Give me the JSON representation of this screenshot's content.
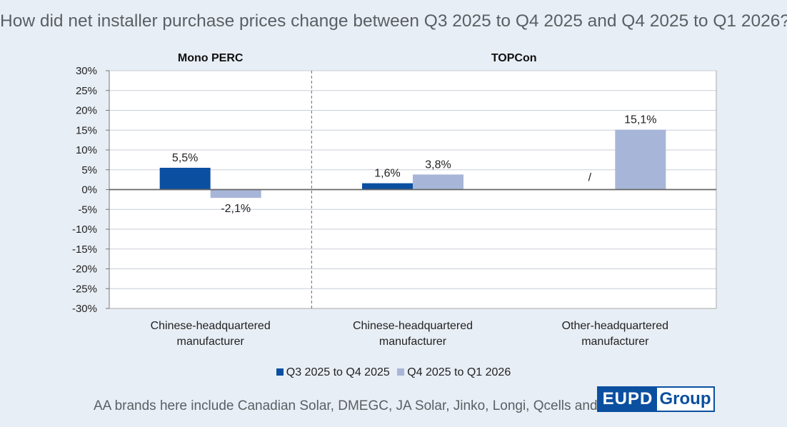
{
  "chart_data": {
    "type": "bar",
    "title": "How did net installer purchase prices change between Q3 2025 to Q4 2025 and Q4 2025 to Q1 2026?",
    "ylim": [
      -30,
      30
    ],
    "ytick_step": 5,
    "yticks": [
      "30%",
      "25%",
      "20%",
      "15%",
      "10%",
      "5%",
      "0%",
      "-5%",
      "-10%",
      "-15%",
      "-20%",
      "-25%",
      "-30%"
    ],
    "panels": [
      {
        "name": "Mono PERC",
        "categories": [
          "Chinese-headquartered manufacturer"
        ]
      },
      {
        "name": "TOPCon",
        "categories": [
          "Chinese-headquartered manufacturer",
          "Other-headquartered manufacturer"
        ]
      }
    ],
    "categories": [
      [
        "Chinese-headquartered",
        "manufacturer"
      ],
      [
        "Chinese-headquartered",
        "manufacturer"
      ],
      [
        "Other-headquartered",
        "manufacturer"
      ]
    ],
    "series": [
      {
        "name": "Q3 2025 to Q4 2025",
        "color": "#0b4fa0",
        "values": [
          5.5,
          1.6,
          null
        ],
        "labels": [
          "5,5%",
          "1,6%",
          "/"
        ]
      },
      {
        "name": "Q4 2025 to Q1 2026",
        "color": "#a7b6d8",
        "values": [
          -2.1,
          3.8,
          15.1
        ],
        "labels": [
          "-2,1%",
          "3,8%",
          "15,1%"
        ]
      }
    ],
    "grid": true,
    "legend_position": "bottom"
  },
  "footnote": "AA brands here include Canadian Solar, DMEGC, JA Solar, Jinko, Longi, Qcells and Trina.",
  "logo": {
    "left": "EUPD",
    "right": "Group"
  },
  "colors": {
    "background": "#e8eef5",
    "plot_background": "#ffffff",
    "grid": "#c8ced6",
    "brand": "#0b4fa0"
  }
}
